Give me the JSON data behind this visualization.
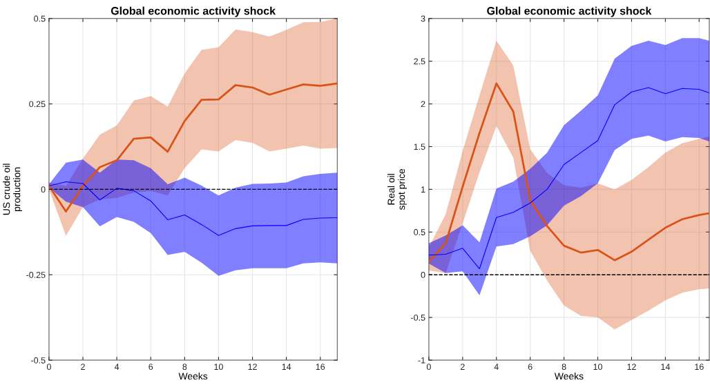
{
  "chart_data": [
    {
      "type": "line",
      "title": "Global economic activity shock",
      "xlabel": "Weeks",
      "ylabel": "US crude oil\nproduction",
      "xlim": [
        0,
        17
      ],
      "xticks": [
        0,
        2,
        4,
        6,
        8,
        10,
        12,
        14,
        16
      ],
      "ylim": [
        -0.5,
        0.5
      ],
      "yticks": [
        -0.5,
        -0.25,
        0,
        0.25,
        0.5
      ],
      "grid": true,
      "x": [
        0,
        1,
        2,
        3,
        4,
        5,
        6,
        7,
        8,
        9,
        10,
        11,
        12,
        13,
        14,
        15,
        16,
        17
      ],
      "series": [
        {
          "color": "#d95319",
          "values": [
            0.01,
            -0.065,
            0.01,
            0.065,
            0.085,
            0.148,
            0.152,
            0.11,
            0.2,
            0.262,
            0.263,
            0.305,
            0.298,
            0.277,
            0.292,
            0.307,
            0.303,
            0.31
          ],
          "lower": [
            0.0,
            -0.136,
            -0.052,
            -0.03,
            -0.025,
            -0.01,
            -0.005,
            -0.018,
            0.062,
            0.117,
            0.111,
            0.144,
            0.136,
            0.111,
            0.119,
            0.128,
            0.119,
            0.121
          ],
          "upper": [
            0.02,
            0.01,
            0.09,
            0.16,
            0.187,
            0.26,
            0.273,
            0.242,
            0.339,
            0.408,
            0.416,
            0.468,
            0.46,
            0.447,
            0.467,
            0.489,
            0.49,
            0.5
          ]
        },
        {
          "color": "#0000ff",
          "values": [
            0.01,
            0.022,
            0.017,
            -0.031,
            0.003,
            -0.004,
            -0.034,
            -0.089,
            -0.075,
            -0.103,
            -0.135,
            -0.115,
            -0.107,
            -0.106,
            -0.106,
            -0.088,
            -0.084,
            -0.083
          ],
          "lower": [
            0.005,
            -0.036,
            -0.052,
            -0.108,
            -0.081,
            -0.095,
            -0.128,
            -0.192,
            -0.183,
            -0.215,
            -0.253,
            -0.237,
            -0.231,
            -0.231,
            -0.231,
            -0.217,
            -0.214,
            -0.217
          ],
          "upper": [
            0.015,
            0.078,
            0.087,
            0.049,
            0.087,
            0.085,
            0.062,
            0.015,
            0.034,
            0.011,
            -0.018,
            0.005,
            0.016,
            0.017,
            0.02,
            0.038,
            0.045,
            0.049
          ]
        }
      ],
      "ref_lines": [
        {
          "axis": "y",
          "value": 0,
          "color": "#000000",
          "line_style": "dashed"
        }
      ]
    },
    {
      "type": "line",
      "title": "Global economic activity shock",
      "xlabel": "Weeks",
      "ylabel": "Real oil\nspot price",
      "xlim": [
        0,
        16.6
      ],
      "xticks": [
        0,
        2,
        4,
        6,
        8,
        10,
        12,
        14,
        16
      ],
      "ylim": [
        -1,
        3
      ],
      "yticks": [
        -1,
        -0.5,
        0,
        0.5,
        1,
        1.5,
        2,
        2.5,
        3
      ],
      "grid": true,
      "x": [
        0,
        1,
        2,
        3,
        4,
        5,
        6,
        7,
        8,
        9,
        10,
        11,
        12,
        13,
        14,
        15,
        16,
        16.6
      ],
      "series": [
        {
          "color": "#d95319",
          "values": [
            0.15,
            0.37,
            1.03,
            1.66,
            2.24,
            1.91,
            0.87,
            0.57,
            0.34,
            0.26,
            0.29,
            0.17,
            0.27,
            0.41,
            0.55,
            0.65,
            0.7,
            0.72
          ],
          "lower": [
            0.05,
            0.02,
            0.6,
            1.2,
            1.74,
            1.37,
            0.28,
            -0.07,
            -0.36,
            -0.48,
            -0.5,
            -0.64,
            -0.53,
            -0.42,
            -0.3,
            -0.21,
            -0.17,
            -0.16
          ],
          "upper": [
            0.32,
            0.71,
            1.45,
            2.1,
            2.74,
            2.45,
            1.47,
            1.19,
            1.05,
            1.02,
            1.07,
            1.0,
            1.11,
            1.26,
            1.43,
            1.54,
            1.59,
            1.62
          ]
        },
        {
          "color": "#0000ff",
          "values": [
            0.23,
            0.24,
            0.31,
            0.07,
            0.67,
            0.73,
            0.84,
            1.0,
            1.29,
            1.43,
            1.57,
            1.99,
            2.14,
            2.19,
            2.12,
            2.18,
            2.17,
            2.13
          ],
          "lower": [
            0.13,
            0.02,
            0.04,
            -0.24,
            0.33,
            0.36,
            0.45,
            0.58,
            0.81,
            0.92,
            1.07,
            1.46,
            1.59,
            1.63,
            1.56,
            1.61,
            1.6,
            1.56
          ],
          "upper": [
            0.37,
            0.46,
            0.58,
            0.38,
            1.01,
            1.09,
            1.24,
            1.43,
            1.75,
            1.92,
            2.1,
            2.53,
            2.68,
            2.74,
            2.69,
            2.77,
            2.77,
            2.74
          ]
        }
      ],
      "ref_lines": [
        {
          "axis": "y",
          "value": 0,
          "color": "#000000",
          "line_style": "dashed"
        }
      ]
    }
  ]
}
